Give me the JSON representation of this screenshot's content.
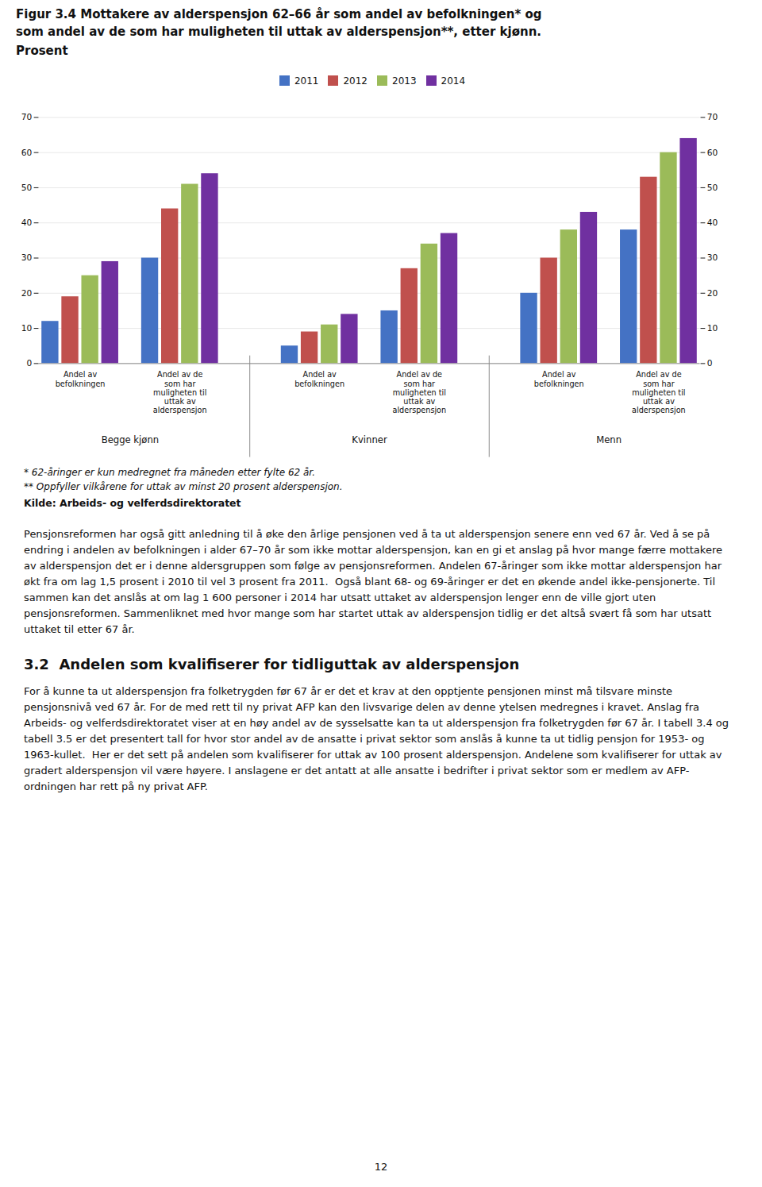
{
  "chart_data": {
    "type": "bar",
    "title": "Figur 3.4 Mottakere av alderspensjon 62–66 år som andel av befolkningen* og\nsom andel av de som har muligheten til uttak av alderspensjon**, etter kjønn.",
    "subtitle": "Prosent",
    "categories": [
      "Andel av\nbefolkningen",
      "Andel av de\nsom har\nmuligheten til\nuttak av\nalderspensjon",
      "Andel av\nbefolkningen",
      "Andel av de\nsom har\nmuligheten til\nuttak av\nalderspensjon",
      "Andel av\nbefolkningen",
      "Andel av de\nsom har\nmuligheten til\nuttak av\nalderspensjon"
    ],
    "groups": [
      "Begge kjønn",
      "Kvinner",
      "Menn"
    ],
    "series": [
      {
        "name": "2011",
        "color": "#4472C4",
        "values": [
          12,
          30,
          5,
          15,
          20,
          38
        ]
      },
      {
        "name": "2012",
        "color": "#C0504D",
        "values": [
          19,
          44,
          9,
          27,
          30,
          53
        ]
      },
      {
        "name": "2013",
        "color": "#9BBB59",
        "values": [
          25,
          51,
          11,
          34,
          38,
          60
        ]
      },
      {
        "name": "2014",
        "color": "#7030A0",
        "values": [
          29,
          54,
          14,
          37,
          43,
          64
        ]
      }
    ],
    "ylim": [
      0,
      70
    ],
    "yticks": [
      0,
      10,
      20,
      30,
      40,
      50,
      60,
      70
    ],
    "grid": true,
    "legend": "top"
  },
  "footnotes": [
    "* 62-åringer er kun medregnet fra måneden etter fylte 62 år.",
    "** Oppfyller vilkårene for uttak av minst 20 prosent alderspensjon."
  ],
  "source": "Kilde: Arbeids- og velferdsdirektoratet",
  "body_text": "Pensjonsreformen har også gitt anledning til å øke den årlige pensjonen ved å ta ut alderspensjon senere enn ved 67 år. Ved å se på endring i andelen av befolkningen i alder 67–70 år som ikke mottar alderspensjon, kan en gi et anslag på hvor mange færre mottakere av alderspensjon det er i denne aldersgruppen som følge av pensjonsreformen. Andelen 67-åringer som ikke mottar alderspensjon har økt fra om lag 1,5 prosent i 2010 til vel 3 prosent fra 2011.  Også blant 68- og 69-åringer er det en økende andel ikke-pensjonerte. Til sammen kan det anslås at om lag 1 600 personer i 2014 har utsatt uttaket av alderspensjon lenger enn de ville gjort uten pensjonsreformen. Sammenliknet med hvor mange som har startet uttak av alderspensjon tidlig er det altså svært få som har utsatt uttaket til etter 67 år.",
  "section_title": "3.2  Andelen som kvalifiserer for tidliguttak av alderspensjon",
  "section_text": "For å kunne ta ut alderspensjon fra folketrygden før 67 år er det et krav at den opptjente pensjonen minst må tilsvare minste pensjonsnivå ved 67 år. For de med rett til ny privat AFP kan den livsvarige delen av denne ytelsen medregnes i kravet. Anslag fra Arbeids- og velferdsdirektoratet viser at en høy andel av de sysselsatte kan ta ut alderspensjon fra folketrygden før 67 år. I tabell 3.4 og tabell 3.5 er det presentert tall for hvor stor andel av de ansatte i privat sektor som anslås å kunne ta ut tidlig pensjon for 1953- og 1963-kullet.  Her er det sett på andelen som kvalifiserer for uttak av 100 prosent alderspensjon. Andelene som kvalifiserer for uttak av gradert alderspensjon vil være høyere. I anslagene er det antatt at alle ansatte i bedrifter i privat sektor som er medlem av AFP-ordningen har rett på ny privat AFP.",
  "page_number": "12"
}
